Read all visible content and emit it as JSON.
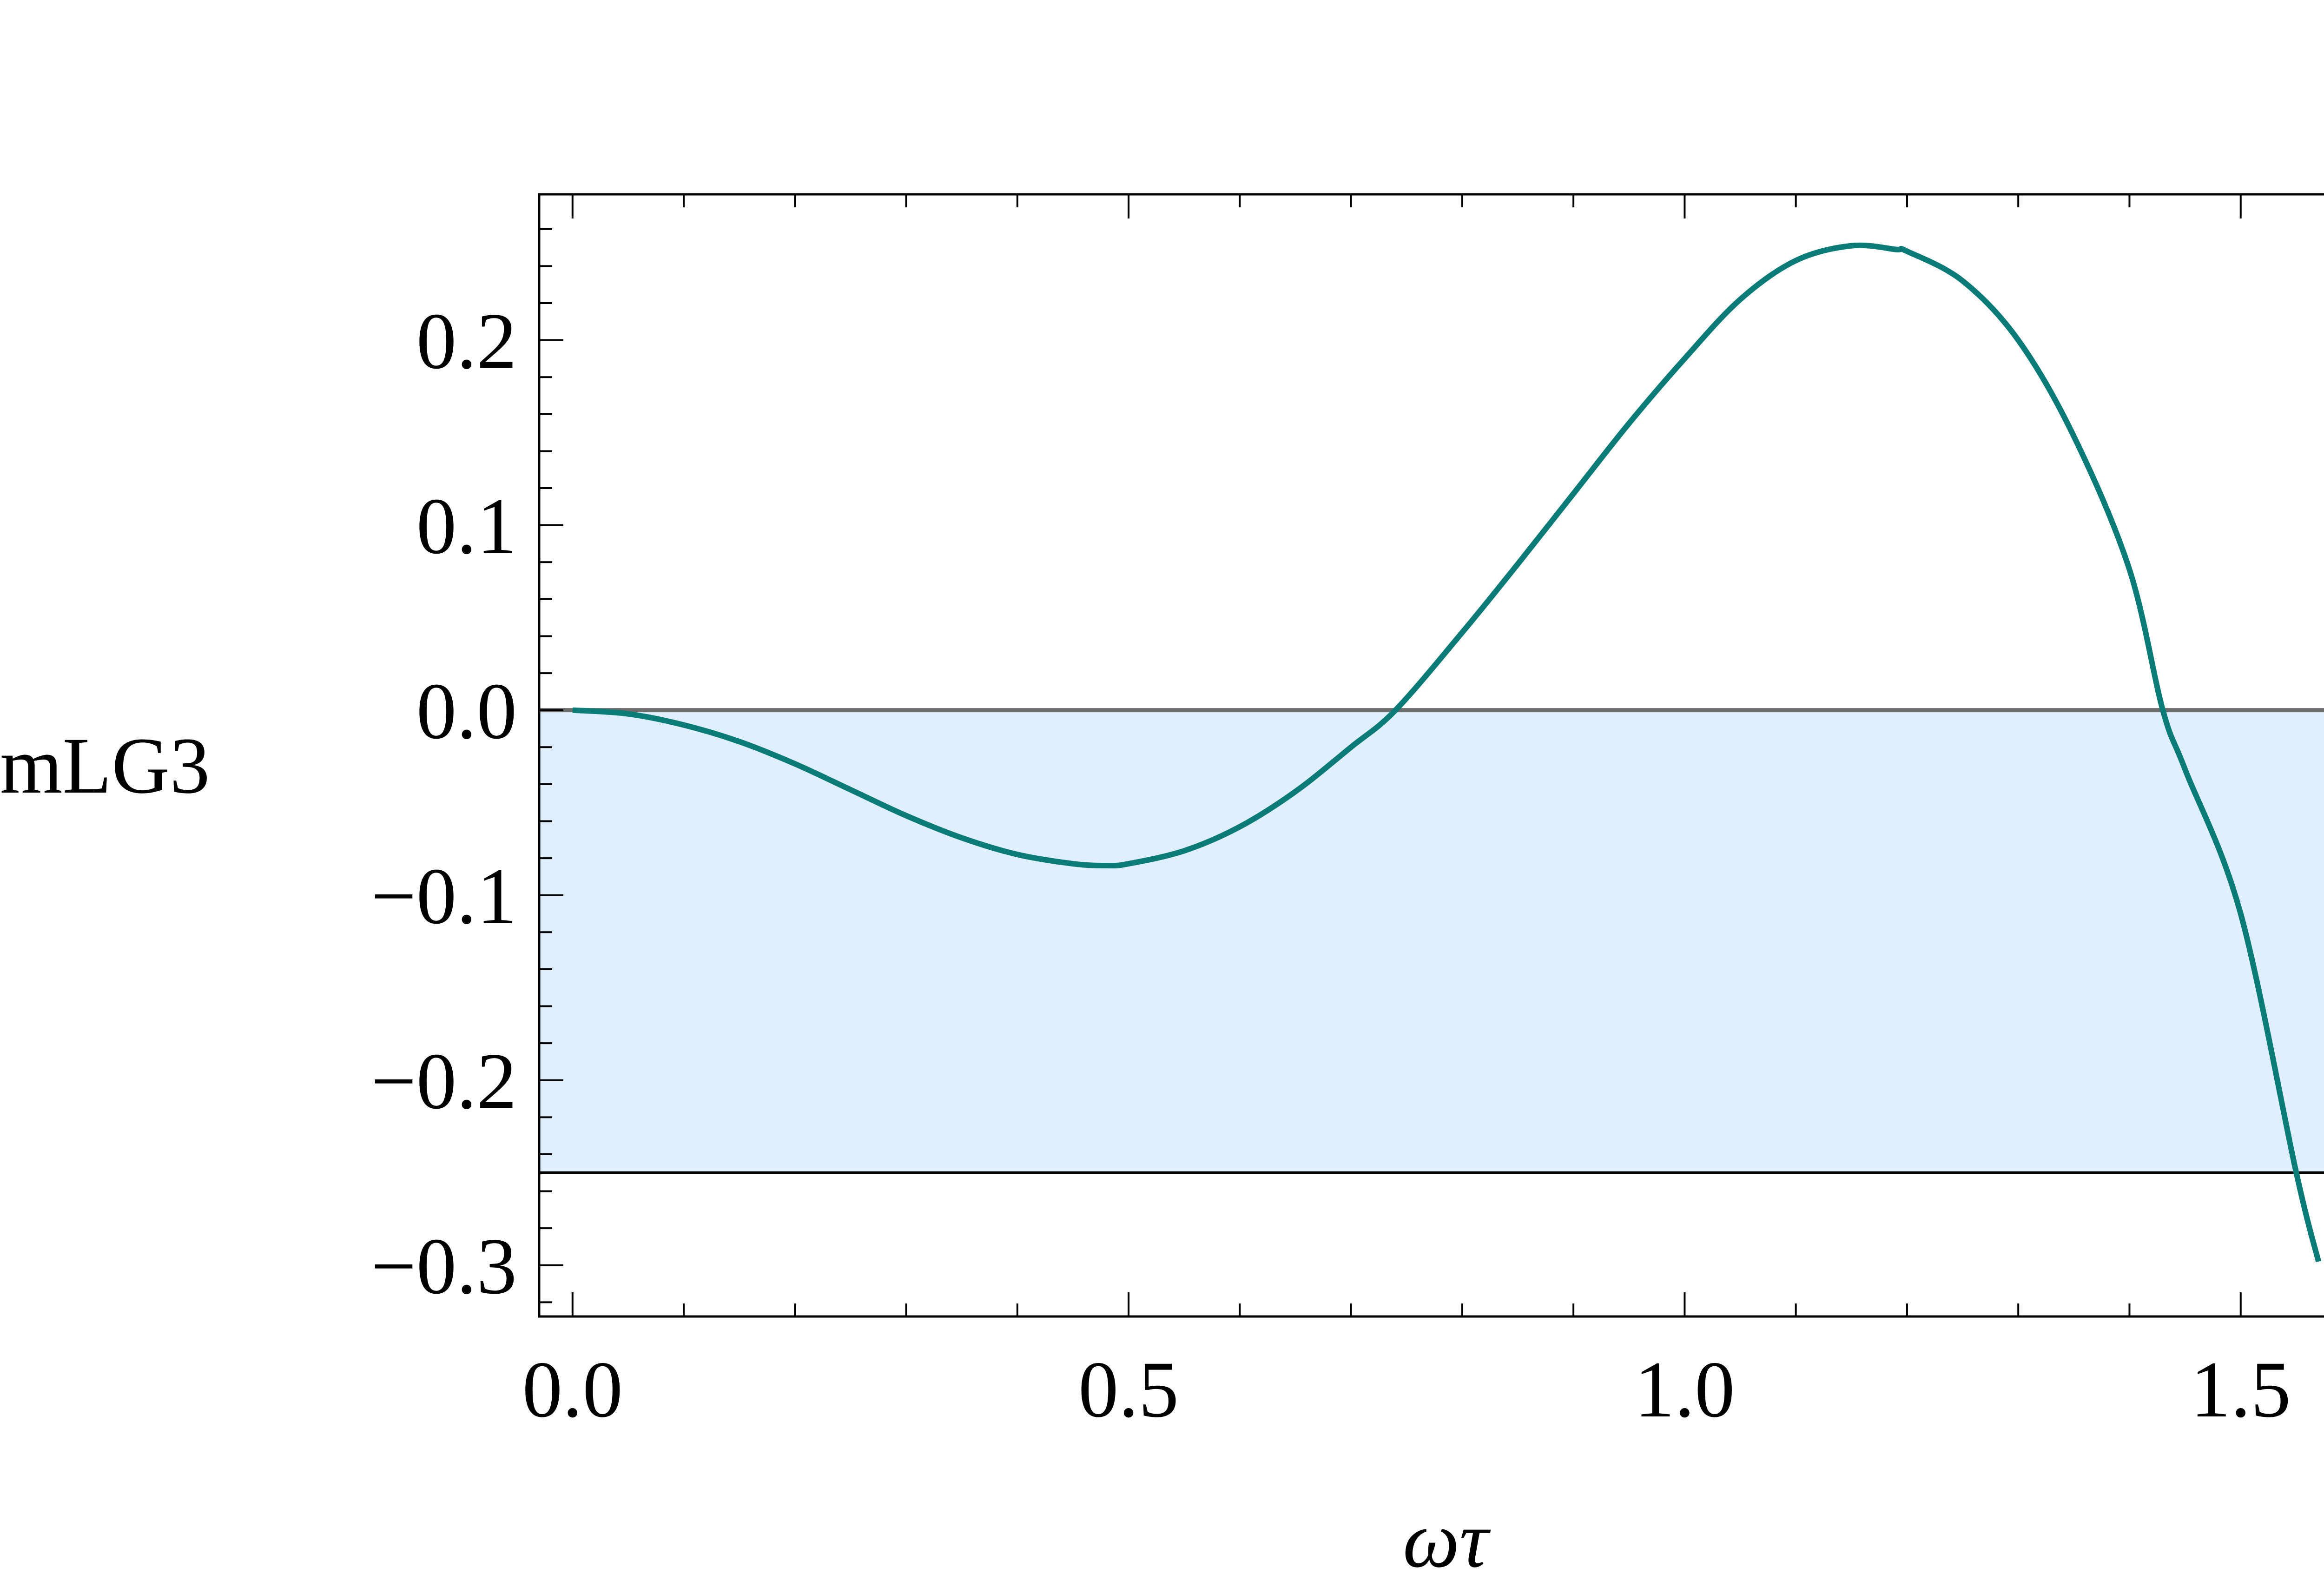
{
  "chart_data": {
    "type": "line",
    "title": "",
    "xlabel": "ωτ",
    "ylabel": "mLG3",
    "xlim": [
      -0.03,
      1.6
    ],
    "ylim": [
      -0.3277,
      0.2788
    ],
    "x_ticks": [
      {
        "value": 0.0,
        "label": "0.0"
      },
      {
        "value": 0.5,
        "label": "0.5"
      },
      {
        "value": 1.0,
        "label": "1.0"
      },
      {
        "value": 1.5,
        "label": "1.5"
      }
    ],
    "y_ticks": [
      {
        "value": 0.2,
        "label": "0.2"
      },
      {
        "value": 0.1,
        "label": "0.1"
      },
      {
        "value": 0.0,
        "label": "0.0"
      },
      {
        "value": -0.1,
        "label": "−0.1"
      },
      {
        "value": -0.2,
        "label": "−0.2"
      },
      {
        "value": -0.3,
        "label": "−0.3"
      }
    ],
    "x_minor_step": 0.1,
    "y_minor_step": 0.02,
    "grid": false,
    "shaded_band": {
      "y_from": -0.25,
      "y_to": 0.0,
      "color": "#dfeffd"
    },
    "reference_lines": [
      {
        "y": 0.0,
        "color": "#6d6d6d"
      },
      {
        "y": -0.25,
        "color": "#000000"
      }
    ],
    "series": [
      {
        "color": "#0b7b77",
        "x": [
          0.0,
          0.05,
          0.1,
          0.15,
          0.2,
          0.25,
          0.3,
          0.35,
          0.4,
          0.45,
          0.48,
          0.5,
          0.55,
          0.6,
          0.65,
          0.7,
          0.74,
          0.8,
          0.85,
          0.9,
          0.95,
          1.0,
          1.05,
          1.1,
          1.15,
          1.19,
          1.2,
          1.25,
          1.3,
          1.35,
          1.4,
          1.43,
          1.45,
          1.5,
          1.55,
          1.57
        ],
        "y": [
          0.0,
          -0.002,
          -0.008,
          -0.017,
          -0.029,
          -0.043,
          -0.057,
          -0.069,
          -0.078,
          -0.083,
          -0.084,
          -0.083,
          -0.076,
          -0.063,
          -0.044,
          -0.02,
          0.0,
          0.042,
          0.079,
          0.117,
          0.155,
          0.19,
          0.222,
          0.243,
          0.251,
          0.249,
          0.248,
          0.232,
          0.2,
          0.148,
          0.076,
          0.0,
          -0.032,
          -0.11,
          -0.25,
          -0.298
        ]
      }
    ]
  }
}
